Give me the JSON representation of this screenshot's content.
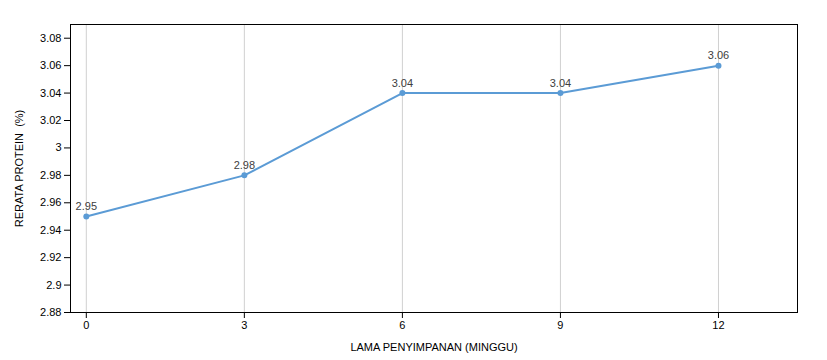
{
  "chart_data": {
    "type": "line",
    "x": [
      0,
      3,
      6,
      9,
      12
    ],
    "values": [
      2.95,
      2.98,
      3.04,
      3.04,
      3.06
    ],
    "xlabel": "LAMA PENYIMPANAN (MINGGU)",
    "ylabel": "RERATA PROTEIN  (%)",
    "color": "#5b9bd5",
    "marker": "circle",
    "data_labels": true,
    "xlim": [
      -0.3,
      13.5
    ],
    "xticks": [
      0,
      3,
      6,
      9,
      12
    ],
    "ylim": [
      2.88,
      3.09
    ],
    "yticks": [
      2.88,
      2.9,
      2.92,
      2.94,
      2.96,
      2.98,
      3.0,
      3.02,
      3.04,
      3.06,
      3.08
    ],
    "grid": "x"
  }
}
